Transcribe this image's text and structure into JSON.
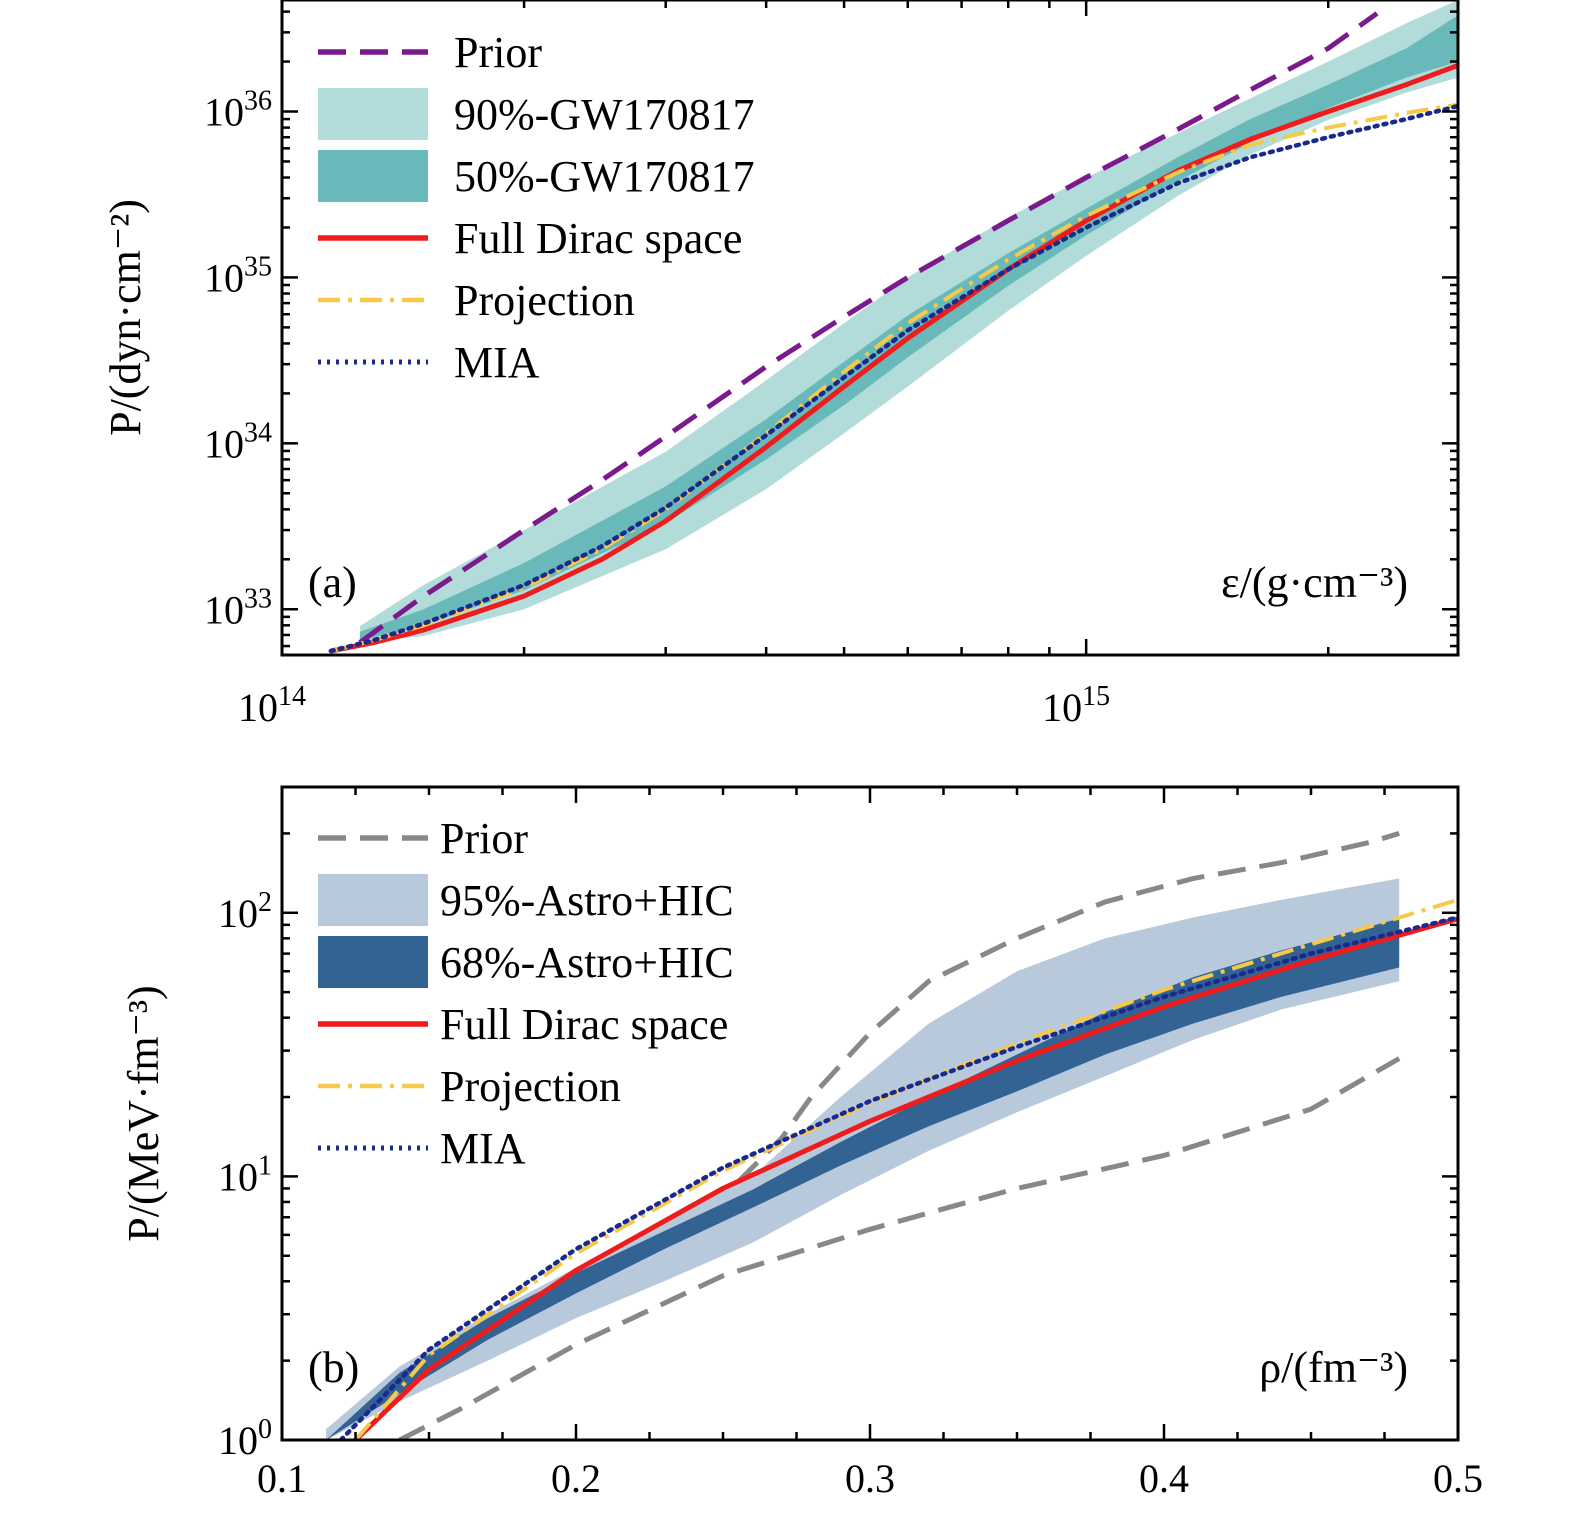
{
  "colors": {
    "prior_a": "#7a1a8c",
    "band90": "#b1dcd9",
    "band50": "#69b8ba",
    "full": "#ee1c1c",
    "projection": "#f6c94a",
    "mia": "#1a2a8c",
    "prior_b": "#888888",
    "band95": "#b9c9dc",
    "band68": "#336393"
  },
  "chart_data": [
    {
      "type": "line",
      "panel_label": "(a)",
      "xlabel": "ε/(g·cm⁻³)",
      "ylabel": "P/(dyn·cm⁻²)",
      "xscale": "log",
      "yscale": "log",
      "xlim": [
        100000000000000.0,
        2900000000000000.0
      ],
      "ylim": [
        5.3e+32,
        4.7e+36
      ],
      "xticks": [
        {
          "v": 100000000000000.0,
          "m": "10",
          "e": "14"
        },
        {
          "v": 1000000000000000.0,
          "m": "10",
          "e": "15"
        }
      ],
      "yticks": [
        {
          "v": 1e+33,
          "m": "10",
          "e": "33"
        },
        {
          "v": 1e+34,
          "m": "10",
          "e": "34"
        },
        {
          "v": 1e+35,
          "m": "10",
          "e": "35"
        },
        {
          "v": 1e+36,
          "m": "10",
          "e": "36"
        }
      ],
      "legend_position": "top-left",
      "legend": [
        "Prior",
        "90%-GW170817",
        "50%-GW170817",
        "Full Dirac space",
        "Projection",
        "MIA"
      ],
      "bands": [
        {
          "name": "90%-GW170817",
          "x": [
            125000000000000.0,
            150000000000000.0,
            200000000000000.0,
            300000000000000.0,
            400000000000000.0,
            500000000000000.0,
            600000000000000.0,
            800000000000000.0,
            1000000000000000.0,
            1300000000000000.0,
            1600000000000000.0,
            2000000000000000.0,
            2500000000000000.0,
            2900000000000000.0
          ],
          "lower": [
            6.3e+32,
            6.9e+32,
            1e+33,
            2.3e+33,
            5.3e+33,
            1.15e+34,
            2.2e+34,
            6.3e+34,
            1.35e+35,
            3.1e+35,
            5.5e+35,
            8.9e+35,
            1.3e+36,
            1.6e+36
          ],
          "upper": [
            7.9e+32,
            1.4e+33,
            3e+33,
            8.9e+33,
            2.4e+34,
            5.3e+34,
            1e+35,
            2.3e+35,
            4e+35,
            7.4e+35,
            1.2e+36,
            2e+36,
            3.4e+36,
            4.7e+36
          ]
        },
        {
          "name": "50%-GW170817",
          "x": [
            125000000000000.0,
            150000000000000.0,
            200000000000000.0,
            300000000000000.0,
            400000000000000.0,
            500000000000000.0,
            600000000000000.0,
            800000000000000.0,
            1000000000000000.0,
            1300000000000000.0,
            1600000000000000.0,
            2000000000000000.0,
            2500000000000000.0,
            2900000000000000.0
          ],
          "lower": [
            6.5e+32,
            8e+32,
            1.3e+33,
            3.3e+33,
            8e+33,
            1.7e+34,
            3.3e+34,
            8.9e+34,
            1.8e+35,
            3.8e+35,
            6.5e+35,
            1.05e+36,
            1.6e+36,
            2e+36
          ],
          "upper": [
            7.3e+32,
            1e+33,
            1.9e+33,
            5.5e+33,
            1.4e+34,
            3.1e+34,
            5.9e+34,
            1.4e+35,
            2.6e+35,
            5.3e+35,
            9e+35,
            1.45e+36,
            2.4e+36,
            3.8e+36
          ]
        }
      ],
      "series": [
        {
          "name": "Prior",
          "x": [
            125000000000000.0,
            150000000000000.0,
            200000000000000.0,
            250000000000000.0,
            300000000000000.0,
            400000000000000.0,
            500000000000000.0,
            600000000000000.0,
            800000000000000.0,
            1000000000000000.0,
            1300000000000000.0,
            1600000000000000.0,
            2000000000000000.0,
            2300000000000000.0
          ],
          "y": [
            6.3e+32,
            1.2e+33,
            3e+33,
            6e+33,
            1.1e+34,
            2.9e+34,
            5.8e+34,
            1e+35,
            2.2e+35,
            4e+35,
            7.8e+35,
            1.35e+36,
            2.4e+36,
            3.9e+36
          ]
        },
        {
          "name": "Full Dirac space",
          "x": [
            115000000000000.0,
            130000000000000.0,
            150000000000000.0,
            200000000000000.0,
            250000000000000.0,
            300000000000000.0,
            400000000000000.0,
            500000000000000.0,
            600000000000000.0,
            800000000000000.0,
            1000000000000000.0,
            1300000000000000.0,
            1600000000000000.0,
            2000000000000000.0,
            2500000000000000.0,
            2900000000000000.0
          ],
          "y": [
            5.6e+32,
            6.3e+32,
            7.5e+32,
            1.2e+33,
            2e+33,
            3.4e+33,
            9.5e+33,
            2.2e+34,
            4.3e+34,
            1.12e+35,
            2.2e+35,
            4.4e+35,
            6.8e+35,
            1e+36,
            1.45e+36,
            1.9e+36
          ]
        },
        {
          "name": "Projection",
          "x": [
            115000000000000.0,
            130000000000000.0,
            150000000000000.0,
            200000000000000.0,
            250000000000000.0,
            300000000000000.0,
            400000000000000.0,
            500000000000000.0,
            600000000000000.0,
            800000000000000.0,
            1000000000000000.0,
            1300000000000000.0,
            1600000000000000.0,
            2000000000000000.0,
            2500000000000000.0,
            2900000000000000.0
          ],
          "y": [
            5.6e+32,
            6.5e+32,
            8e+32,
            1.35e+33,
            2.3e+33,
            4e+33,
            1.15e+34,
            2.7e+34,
            5.3e+34,
            1.28e+35,
            2.35e+35,
            4.3e+35,
            6.3e+35,
            8e+35,
            9.8e+35,
            1.1e+36
          ]
        },
        {
          "name": "MIA",
          "x": [
            115000000000000.0,
            130000000000000.0,
            150000000000000.0,
            200000000000000.0,
            250000000000000.0,
            300000000000000.0,
            400000000000000.0,
            500000000000000.0,
            600000000000000.0,
            800000000000000.0,
            1000000000000000.0,
            1300000000000000.0,
            1600000000000000.0,
            2000000000000000.0,
            2500000000000000.0,
            2900000000000000.0
          ],
          "y": [
            5.6e+32,
            6.5e+32,
            8.2e+32,
            1.4e+33,
            2.4e+33,
            4.1e+33,
            1.12e+34,
            2.5e+34,
            4.8e+34,
            1.12e+35,
            2e+35,
            3.7e+35,
            5.3e+35,
            7e+35,
            9e+35,
            1.08e+36
          ]
        }
      ]
    },
    {
      "type": "line",
      "panel_label": "(b)",
      "xlabel": "ρ/(fm⁻³)",
      "ylabel": "P/(MeV·fm⁻³)",
      "xscale": "linear",
      "yscale": "log",
      "xlim": [
        0.1,
        0.5
      ],
      "ylim": [
        1.0,
        300
      ],
      "xticks": [
        {
          "v": 0.1,
          "t": "0.1"
        },
        {
          "v": 0.2,
          "t": "0.2"
        },
        {
          "v": 0.3,
          "t": "0.3"
        },
        {
          "v": 0.4,
          "t": "0.4"
        },
        {
          "v": 0.5,
          "t": "0.5"
        }
      ],
      "yticks": [
        {
          "v": 1,
          "m": "10",
          "e": "0"
        },
        {
          "v": 10,
          "m": "10",
          "e": "1"
        },
        {
          "v": 100,
          "m": "10",
          "e": "2"
        }
      ],
      "legend_position": "top-left",
      "legend": [
        "Prior",
        "95%-Astro+HIC",
        "68%-Astro+HIC",
        "Full Dirac space",
        "Projection",
        "MIA"
      ],
      "bands": [
        {
          "name": "95%-Astro+HIC",
          "x": [
            0.115,
            0.14,
            0.17,
            0.2,
            0.23,
            0.26,
            0.29,
            0.32,
            0.35,
            0.38,
            0.41,
            0.44,
            0.48
          ],
          "lower": [
            1.0,
            1.4,
            2.0,
            2.9,
            4.0,
            5.6,
            8.5,
            12.5,
            17.5,
            24.0,
            33.0,
            43.0,
            55.0
          ],
          "upper": [
            1.1,
            1.9,
            3.0,
            4.5,
            6.8,
            10.0,
            20.0,
            38.0,
            60.0,
            80.0,
            96.0,
            112.0,
            135.0
          ]
        },
        {
          "name": "68%-Astro+HIC",
          "x": [
            0.115,
            0.14,
            0.17,
            0.2,
            0.23,
            0.26,
            0.29,
            0.32,
            0.35,
            0.38,
            0.41,
            0.44,
            0.48
          ],
          "lower": [
            1.0,
            1.5,
            2.4,
            3.6,
            5.3,
            7.6,
            11.0,
            15.5,
            21.0,
            29.0,
            38.0,
            48.0,
            62.0
          ],
          "upper": [
            1.0,
            1.8,
            2.9,
            4.3,
            6.2,
            8.9,
            13.5,
            20.0,
            29.0,
            42.0,
            57.0,
            72.0,
            95.0
          ]
        }
      ],
      "series": [
        {
          "name": "Prior (upper)",
          "x": [
            0.255,
            0.27,
            0.28,
            0.3,
            0.32,
            0.35,
            0.38,
            0.41,
            0.44,
            0.47,
            0.48
          ],
          "y": [
            9.5,
            14.0,
            20.0,
            35.0,
            55.0,
            80.0,
            110.0,
            135.0,
            155.0,
            185.0,
            200.0
          ]
        },
        {
          "name": "Prior (lower)",
          "x": [
            0.14,
            0.16,
            0.2,
            0.25,
            0.3,
            0.35,
            0.4,
            0.45,
            0.48
          ],
          "y": [
            1.0,
            1.3,
            2.3,
            4.2,
            6.3,
            9.0,
            12.0,
            18.0,
            28.0
          ]
        },
        {
          "name": "Full Dirac space",
          "x": [
            0.125,
            0.15,
            0.2,
            0.25,
            0.3,
            0.35,
            0.4,
            0.45,
            0.5
          ],
          "y": [
            1.0,
            1.85,
            4.4,
            9.0,
            16.2,
            27.5,
            44.0,
            66.0,
            95.0
          ]
        },
        {
          "name": "Projection",
          "x": [
            0.125,
            0.15,
            0.2,
            0.25,
            0.3,
            0.35,
            0.4,
            0.45,
            0.5
          ],
          "y": [
            1.0,
            2.1,
            5.1,
            10.5,
            19.0,
            32.0,
            51.0,
            76.0,
            112.0
          ]
        },
        {
          "name": "MIA",
          "x": [
            0.12,
            0.15,
            0.2,
            0.25,
            0.3,
            0.35,
            0.4,
            0.45,
            0.5
          ],
          "y": [
            1.0,
            2.2,
            5.3,
            10.8,
            19.3,
            31.0,
            48.0,
            70.0,
            96.0
          ]
        }
      ]
    }
  ]
}
